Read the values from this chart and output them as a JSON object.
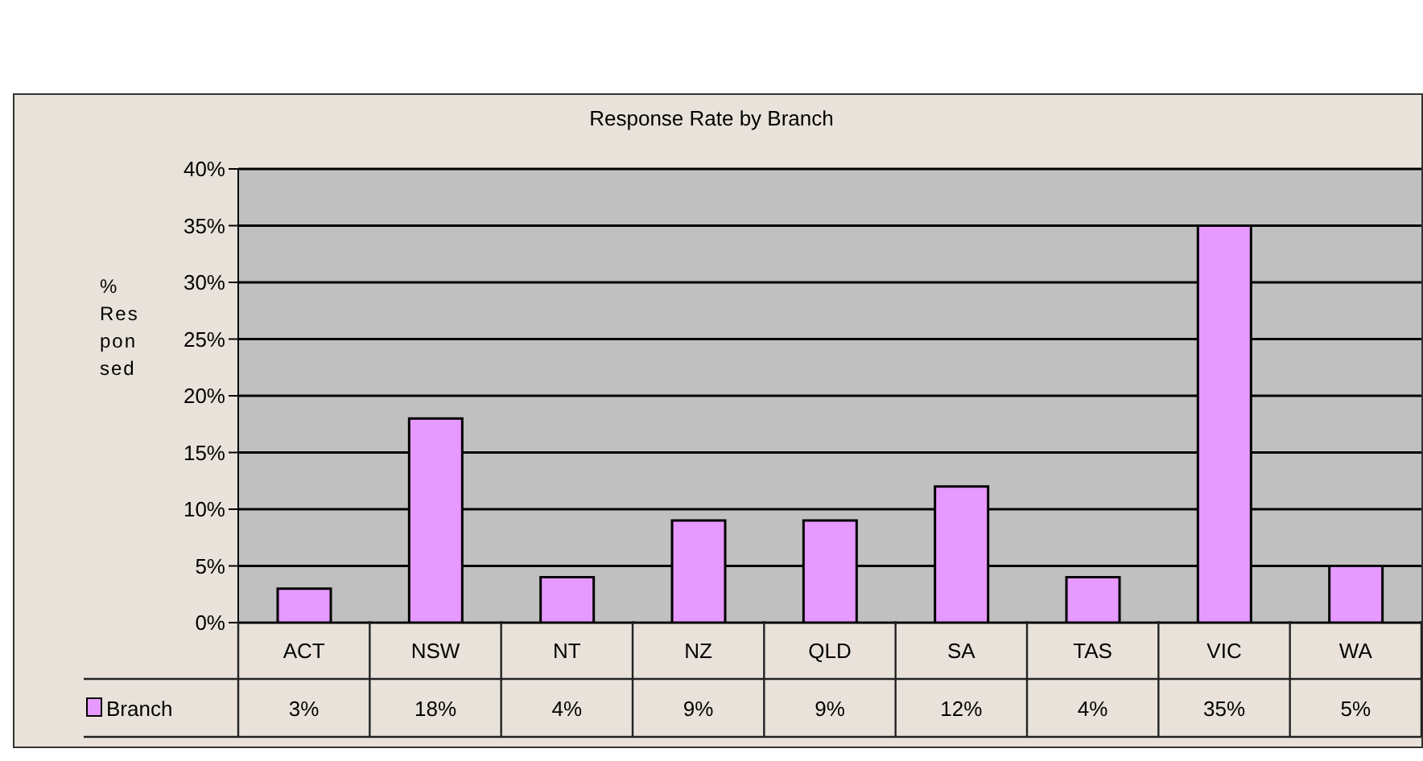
{
  "chart_data": {
    "type": "bar",
    "title": "Response Rate by Branch",
    "ylabel": "% Responsed",
    "categories": [
      "ACT",
      "NSW",
      "NT",
      "NZ",
      "QLD",
      "SA",
      "TAS",
      "VIC",
      "WA"
    ],
    "series": [
      {
        "name": "Branch",
        "color": "#e699ff",
        "values": [
          3,
          18,
          4,
          9,
          9,
          12,
          4,
          35,
          5
        ],
        "value_labels": [
          "3%",
          "18%",
          "4%",
          "9%",
          "9%",
          "12%",
          "4%",
          "35%",
          "5%"
        ]
      }
    ],
    "ylim": [
      0,
      40
    ],
    "yticks": [
      {
        "value": 0,
        "label": "0%"
      },
      {
        "value": 5,
        "label": "5%"
      },
      {
        "value": 10,
        "label": "10%"
      },
      {
        "value": 15,
        "label": "15%"
      },
      {
        "value": 20,
        "label": "20%"
      },
      {
        "value": 25,
        "label": "25%"
      },
      {
        "value": 30,
        "label": "30%"
      },
      {
        "value": 35,
        "label": "35%"
      },
      {
        "value": 40,
        "label": "40%"
      }
    ],
    "grid": "y",
    "legend": "bottom left"
  }
}
